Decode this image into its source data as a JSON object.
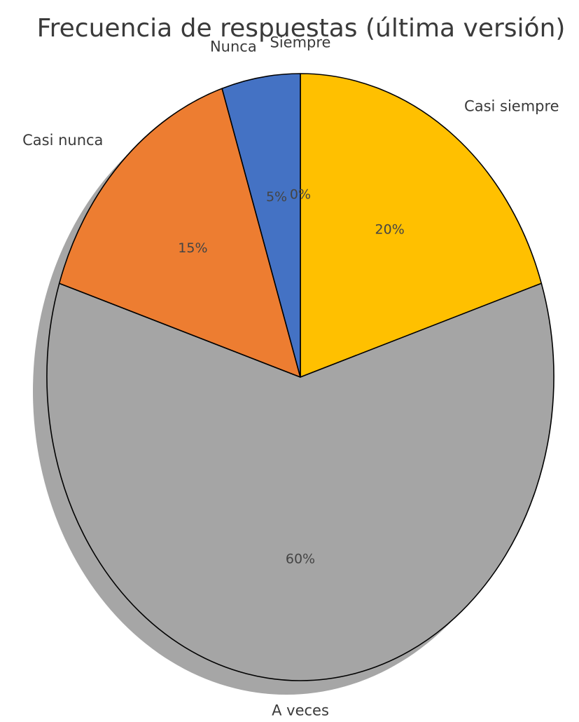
{
  "chart_data": {
    "type": "pie",
    "title": "Frecuencia de respuestas (última versión)",
    "categories": [
      "Siempre",
      "Casi siempre",
      "A veces",
      "Casi nunca",
      "Nunca"
    ],
    "values": [
      0,
      20,
      60,
      15,
      5
    ],
    "value_labels": [
      "0%",
      "20%",
      "60%",
      "15%",
      "5%"
    ],
    "colors": [
      "#4472c4",
      "#ffc000",
      "#a5a5a5",
      "#ed7d31",
      "#4472c4"
    ],
    "start_angle_deg": 90,
    "direction": "clockwise",
    "shadow": true,
    "edge_color": "#000000"
  }
}
